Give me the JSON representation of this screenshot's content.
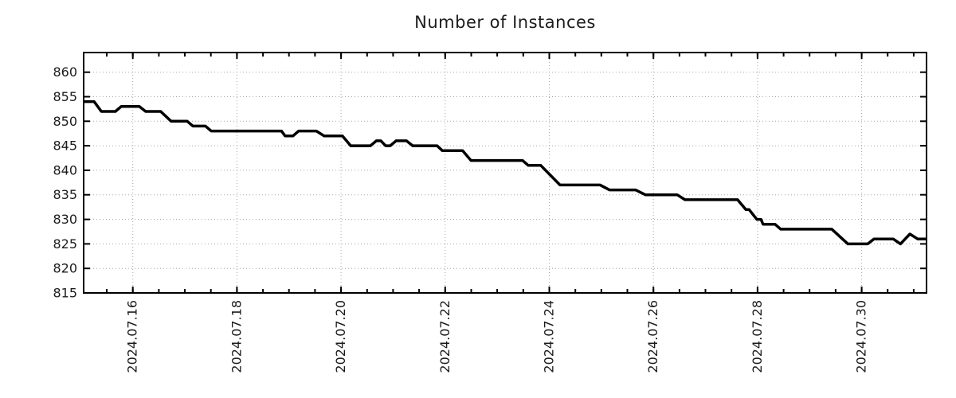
{
  "chart_data": {
    "type": "line",
    "title": "Number of Instances",
    "legend": false,
    "grid": true,
    "colors": {
      "line": "#000000",
      "grid": "#a6a6a6",
      "axis": "#000000",
      "text": "#1c1c1c"
    },
    "x_axis": {
      "unit": "days_from_left_edge",
      "range": [
        0,
        16.19
      ],
      "major_ticks": [
        {
          "day": 0.944,
          "label": "2024.07.16"
        },
        {
          "day": 2.944,
          "label": "2024.07.18"
        },
        {
          "day": 4.944,
          "label": "2024.07.20"
        },
        {
          "day": 6.944,
          "label": "2024.07.22"
        },
        {
          "day": 8.944,
          "label": "2024.07.24"
        },
        {
          "day": 10.944,
          "label": "2024.07.26"
        },
        {
          "day": 12.944,
          "label": "2024.07.28"
        },
        {
          "day": 14.944,
          "label": "2024.07.30"
        }
      ],
      "minor_tick_start": 0.444,
      "minor_tick_step": 0.5
    },
    "y_axis": {
      "range": [
        815,
        864
      ],
      "ticks": [
        815,
        820,
        825,
        830,
        835,
        840,
        845,
        850,
        855,
        860
      ]
    },
    "series": [
      {
        "name": "instances",
        "points": [
          [
            0.0,
            854
          ],
          [
            0.2,
            854
          ],
          [
            0.34,
            852
          ],
          [
            0.61,
            852
          ],
          [
            0.72,
            853
          ],
          [
            1.07,
            853
          ],
          [
            1.19,
            852
          ],
          [
            1.48,
            852
          ],
          [
            1.68,
            850
          ],
          [
            1.99,
            850
          ],
          [
            2.1,
            849
          ],
          [
            2.34,
            849
          ],
          [
            2.45,
            848
          ],
          [
            3.8,
            848
          ],
          [
            3.87,
            847
          ],
          [
            4.02,
            847
          ],
          [
            4.13,
            848
          ],
          [
            4.47,
            848
          ],
          [
            4.62,
            847
          ],
          [
            4.97,
            847
          ],
          [
            5.13,
            845
          ],
          [
            5.51,
            845
          ],
          [
            5.62,
            846
          ],
          [
            5.71,
            846
          ],
          [
            5.8,
            845
          ],
          [
            5.89,
            845
          ],
          [
            6.0,
            846
          ],
          [
            6.2,
            846
          ],
          [
            6.32,
            845
          ],
          [
            6.79,
            845
          ],
          [
            6.89,
            844
          ],
          [
            7.28,
            844
          ],
          [
            7.44,
            842
          ],
          [
            8.43,
            842
          ],
          [
            8.54,
            841
          ],
          [
            8.78,
            841
          ],
          [
            9.15,
            837
          ],
          [
            9.92,
            837
          ],
          [
            10.1,
            836
          ],
          [
            10.6,
            836
          ],
          [
            10.79,
            835
          ],
          [
            11.4,
            835
          ],
          [
            11.55,
            834
          ],
          [
            12.56,
            834
          ],
          [
            12.72,
            832
          ],
          [
            12.78,
            832
          ],
          [
            12.93,
            830
          ],
          [
            13.01,
            830
          ],
          [
            13.05,
            829
          ],
          [
            13.28,
            829
          ],
          [
            13.39,
            828
          ],
          [
            14.37,
            828
          ],
          [
            14.68,
            825
          ],
          [
            15.06,
            825
          ],
          [
            15.18,
            826
          ],
          [
            15.55,
            826
          ],
          [
            15.69,
            825
          ],
          [
            15.87,
            827
          ],
          [
            16.02,
            826
          ],
          [
            16.19,
            826
          ]
        ]
      }
    ]
  }
}
